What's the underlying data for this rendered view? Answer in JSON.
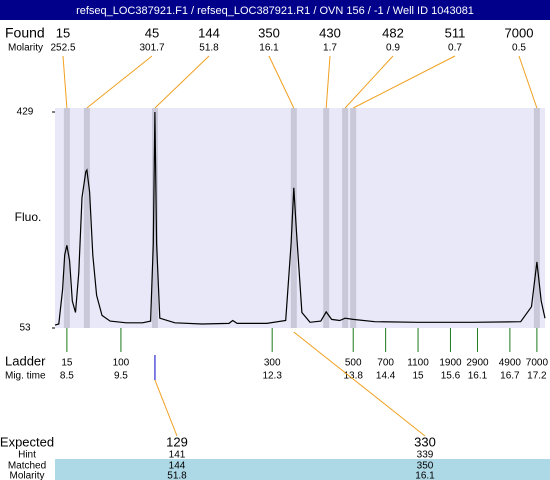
{
  "chart_data": {
    "type": "line",
    "title": "refseq_LOC387921.F1 / refseq_LOC387921.R1 / OVN 156 / -1 / Well ID 1043081",
    "y_label": "Fluo.",
    "ylim": [
      53,
      429
    ],
    "yticks": [
      53,
      429
    ],
    "xlim": [
      8.28,
      17.35
    ],
    "x": [
      8.28,
      8.35,
      8.42,
      8.46,
      8.5,
      8.55,
      8.6,
      8.66,
      8.72,
      8.78,
      8.85,
      8.87,
      8.92,
      8.98,
      9.05,
      9.15,
      9.3,
      9.6,
      9.9,
      10.05,
      10.1,
      10.13,
      10.16,
      10.22,
      10.5,
      11.0,
      11.5,
      11.57,
      11.65,
      12.2,
      12.55,
      12.65,
      12.7,
      12.75,
      12.85,
      13.0,
      13.2,
      13.3,
      13.4,
      13.55,
      13.65,
      13.8,
      14.2,
      15.0,
      16.0,
      16.9,
      17.1,
      17.2,
      17.28,
      17.35
    ],
    "values": [
      58,
      60,
      120,
      180,
      197,
      170,
      100,
      80,
      150,
      280,
      325,
      328,
      290,
      180,
      110,
      75,
      65,
      62,
      62,
      65,
      200,
      429,
      200,
      70,
      62,
      60,
      61,
      66,
      61,
      61,
      66,
      200,
      297,
      220,
      80,
      63,
      65,
      81,
      68,
      66,
      70,
      68,
      64,
      63,
      63,
      64,
      90,
      168,
      100,
      70
    ],
    "found": {
      "label": "Found",
      "molarity_label": "Molarity",
      "sizes": [
        15,
        45,
        144,
        350,
        430,
        482,
        511,
        7000
      ],
      "molarities": [
        252.5,
        301.7,
        51.8,
        16.1,
        1.7,
        0.9,
        0.7,
        0.5
      ],
      "times": [
        8.5,
        8.87,
        10.13,
        12.7,
        13.3,
        13.65,
        13.8,
        17.2
      ]
    },
    "ladder": {
      "label": "Ladder",
      "time_label": "Mig. time",
      "sizes": [
        15,
        100,
        300,
        500,
        700,
        1100,
        1900,
        2900,
        4900,
        7000
      ],
      "times": [
        8.5,
        9.5,
        12.3,
        13.8,
        14.4,
        15,
        15.6,
        16.1,
        16.7,
        17.2
      ]
    },
    "expected": {
      "label": "Expected",
      "hint_label": "Hint",
      "matched_label": "Matched",
      "molarity_label": "Molarity",
      "sizes": [
        129,
        330
      ],
      "hints": [
        141,
        339
      ],
      "matched": [
        144,
        350
      ],
      "molarities": [
        51.8,
        16.1
      ]
    }
  }
}
